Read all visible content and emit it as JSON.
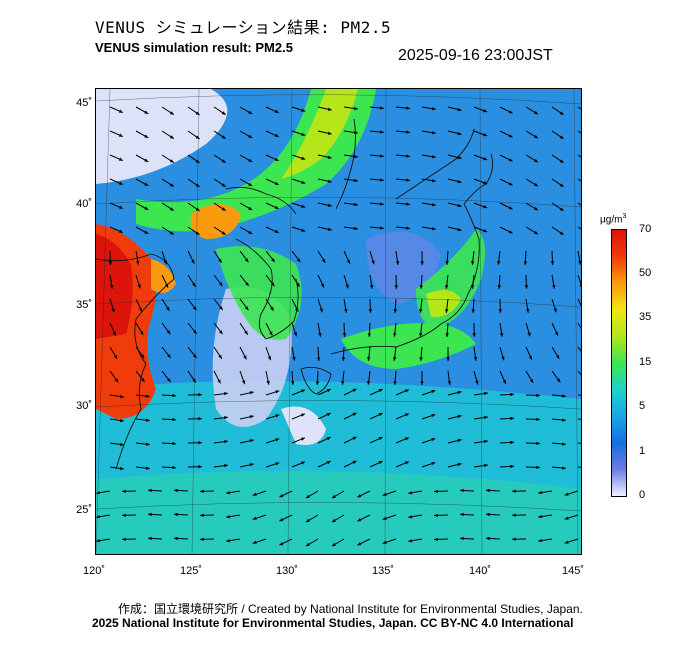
{
  "title_jp": "VENUS シミュレーション結果: PM2.5",
  "title_en": "VENUS simulation result: PM2.5",
  "timestamp": "2025-09-16 23:00JST",
  "lat_ticks": [
    "45˚",
    "40˚",
    "35˚",
    "30˚",
    "25˚"
  ],
  "lon_ticks": [
    "120˚",
    "125˚",
    "130˚",
    "135˚",
    "140˚",
    "145˚"
  ],
  "colorbar": {
    "unit_base": "µg/m",
    "unit_exp": "3",
    "labels": [
      "70",
      "50",
      "35",
      "15",
      "5",
      "1",
      "0"
    ],
    "colors": [
      "#f0f0ff",
      "#6a7be6",
      "#1470e0",
      "#19a6e6",
      "#1ed2c8",
      "#3ce650",
      "#b4e619",
      "#f0e614",
      "#fa9b0f",
      "#f03c0a",
      "#dc140a"
    ]
  },
  "credit": "作成：国立環境研究所 / Created by National Institute for Environmental Studies, Japan.",
  "copyright": "2025 National Institute for Environmental Studies, Japan. CC BY-NC 4.0 International"
}
